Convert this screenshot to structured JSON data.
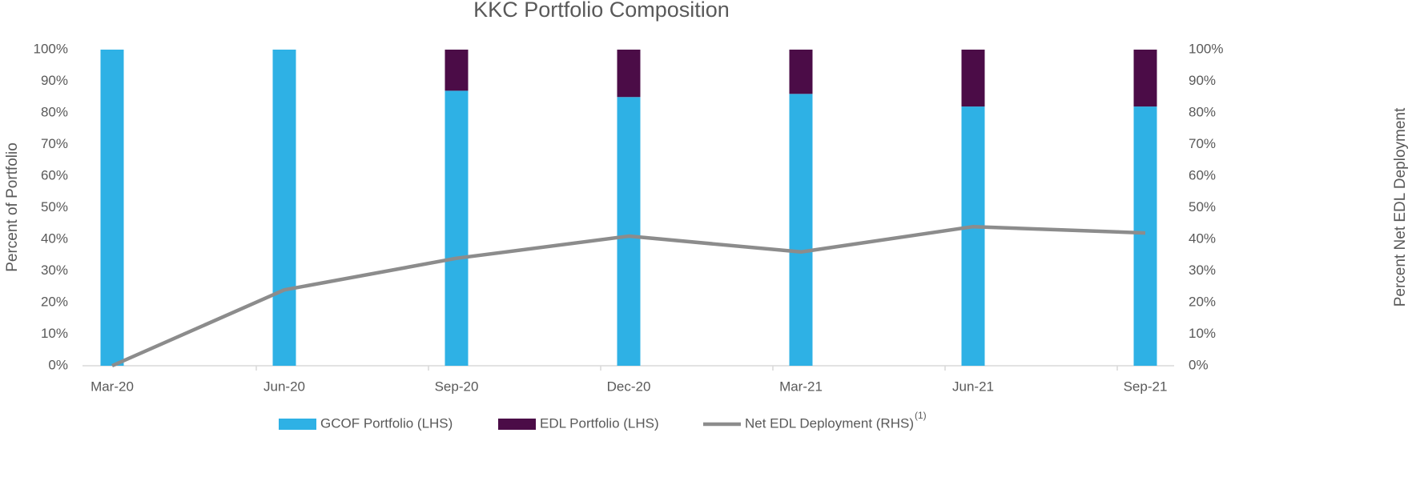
{
  "chart_data": {
    "type": "bar",
    "title": "KKC Portfolio Composition",
    "y_label": "Percent of Portfolio",
    "y2_label": "Percent Net EDL Deployment",
    "categories": [
      "Mar-20",
      "Jun-20",
      "Sep-20",
      "Dec-20",
      "Mar-21",
      "Jun-21",
      "Sep-21"
    ],
    "series": [
      {
        "name": "GCOF Portfolio (LHS)",
        "color": "#2eb1e5",
        "type": "bar",
        "values": [
          100,
          100,
          87,
          85,
          86,
          82,
          82
        ]
      },
      {
        "name": "EDL Portfolio (LHS)",
        "color": "#4b0c47",
        "type": "bar",
        "values": [
          0,
          0,
          13,
          15,
          14,
          18,
          18
        ]
      },
      {
        "name": "Net EDL Deployment (RHS)",
        "color": "#8c8c8c",
        "type": "line",
        "axis": "y2",
        "values": [
          0,
          24,
          34,
          41,
          36,
          44,
          42
        ]
      }
    ],
    "legend_footnote": "(1)",
    "stacked": true,
    "ylim": [
      0,
      100
    ],
    "yticks": [
      {
        "value": 0,
        "label": "0%"
      },
      {
        "value": 10,
        "label": "10%"
      },
      {
        "value": 20,
        "label": "20%"
      },
      {
        "value": 30,
        "label": "30%"
      },
      {
        "value": 40,
        "label": "40%"
      },
      {
        "value": 50,
        "label": "50%"
      },
      {
        "value": 60,
        "label": "60%"
      },
      {
        "value": 70,
        "label": "70%"
      },
      {
        "value": 80,
        "label": "80%"
      },
      {
        "value": 90,
        "label": "90%"
      },
      {
        "value": 100,
        "label": "100%"
      }
    ],
    "y2lim": [
      0,
      100
    ],
    "y2ticks": [
      {
        "value": 0,
        "label": "0%"
      },
      {
        "value": 10,
        "label": "10%"
      },
      {
        "value": 20,
        "label": "20%"
      },
      {
        "value": 30,
        "label": "30%"
      },
      {
        "value": 40,
        "label": "40%"
      },
      {
        "value": 50,
        "label": "50%"
      },
      {
        "value": 60,
        "label": "60%"
      },
      {
        "value": 70,
        "label": "70%"
      },
      {
        "value": 80,
        "label": "80%"
      },
      {
        "value": 90,
        "label": "90%"
      },
      {
        "value": 100,
        "label": "100%"
      }
    ],
    "grid": false,
    "legend": "bottom"
  }
}
